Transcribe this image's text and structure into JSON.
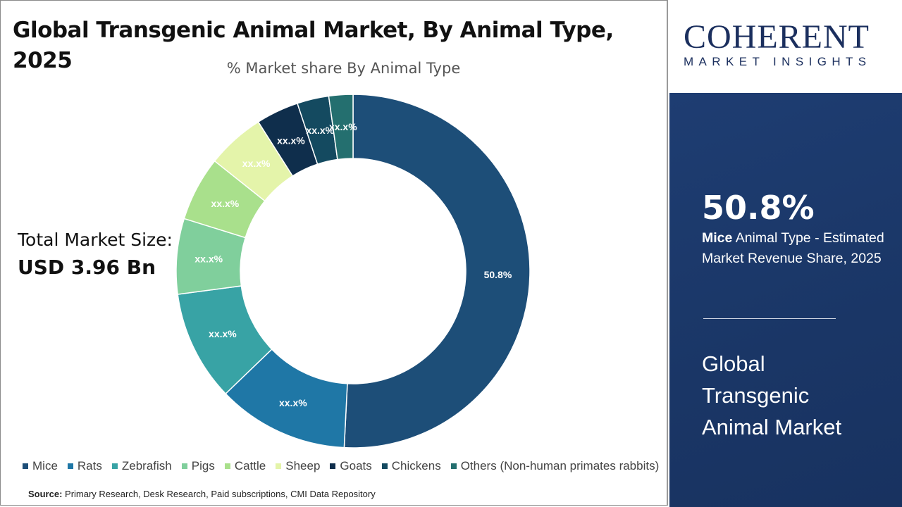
{
  "title": "Global Transgenic Animal Market, By Animal Type, 2025",
  "total_market": {
    "label": "Total Market Size:",
    "value": "USD 3.96 Bn"
  },
  "chart_data": {
    "type": "pie",
    "variant": "donut",
    "title": "% Market share By Animal Type",
    "categories": [
      "Mice",
      "Rats",
      "Zebrafish",
      "Pigs",
      "Cattle",
      "Sheep",
      "Goats",
      "Chickens",
      "Others (Non-human primates rabbits)"
    ],
    "values": [
      50.8,
      12.0,
      10.1,
      6.9,
      5.9,
      5.3,
      3.9,
      2.9,
      2.2
    ],
    "data_labels": [
      "50.8%",
      "xx.x%",
      "xx.x%",
      "xx.x%",
      "xx.x%",
      "xx.x%",
      "xx.x%",
      "xx.x%",
      "xx.x%"
    ],
    "colors": [
      "#1d4e78",
      "#1f77a6",
      "#38a3a5",
      "#80cf9c",
      "#a9e08c",
      "#e4f4aa",
      "#0f2e4c",
      "#144a60",
      "#246f6f"
    ],
    "legend_position": "bottom"
  },
  "source": {
    "label": "Source:",
    "text": " Primary Research, Desk Research, Paid subscriptions, CMI Data Repository"
  },
  "logo": {
    "top": "COHERENT",
    "bottom": "MARKET INSIGHTS"
  },
  "panel": {
    "highlight_value": "50.8%",
    "highlight_bold": "Mice",
    "highlight_text": " Animal Type - Estimated Market Revenue Share, 2025",
    "market_name": "Global Transgenic Animal Market",
    "background_color": "#1c3a6c"
  }
}
